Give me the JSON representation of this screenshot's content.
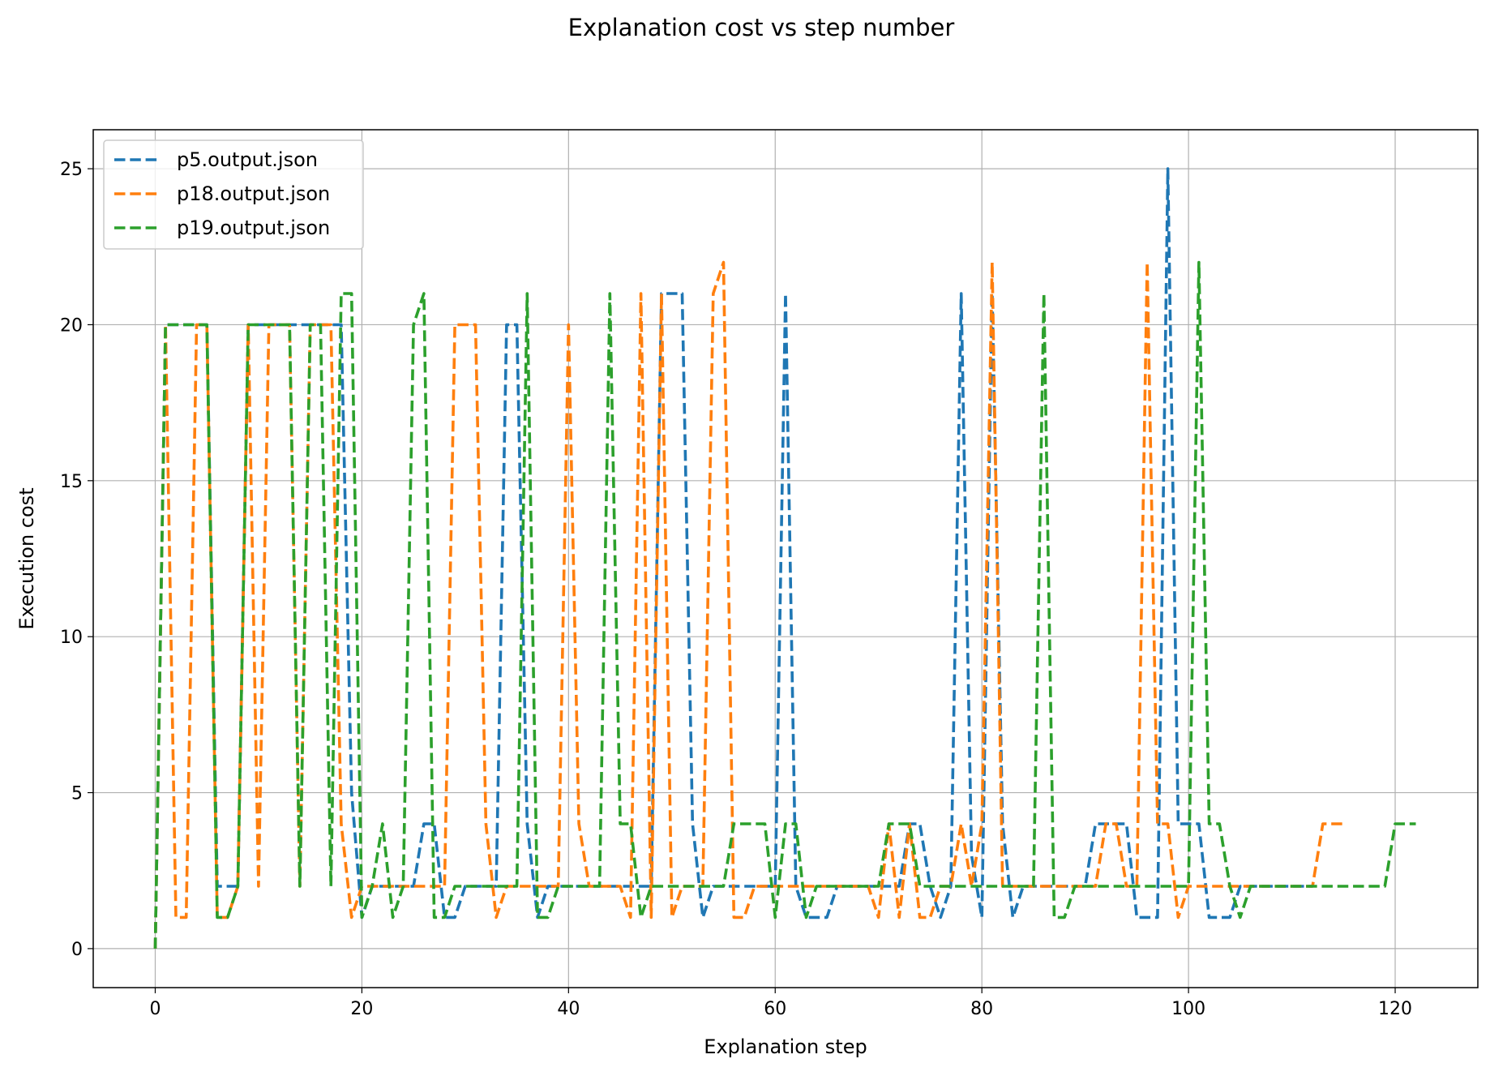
{
  "chart_data": {
    "type": "line",
    "title": "Explanation cost vs step number",
    "xlabel": "Explanation step",
    "ylabel": "Execution cost",
    "xlim": [
      -6,
      128
    ],
    "ylim": [
      -1.25,
      26.25
    ],
    "xticks": [
      0,
      20,
      40,
      60,
      80,
      100,
      120
    ],
    "yticks": [
      0,
      5,
      10,
      15,
      20,
      25
    ],
    "grid": true,
    "legend_position": "top-left",
    "line_style": "dashed",
    "series": [
      {
        "name": "p5.output.json",
        "color": "#1f77b4",
        "x": [
          0,
          1,
          2,
          3,
          4,
          5,
          6,
          7,
          8,
          9,
          10,
          11,
          12,
          13,
          14,
          15,
          16,
          17,
          18,
          19,
          20,
          21,
          22,
          23,
          24,
          25,
          26,
          27,
          28,
          29,
          30,
          31,
          32,
          33,
          34,
          35,
          36,
          37,
          38,
          39,
          40,
          41,
          42,
          43,
          44,
          45,
          46,
          47,
          48,
          49,
          50,
          51,
          52,
          53,
          54,
          55,
          56,
          57,
          58,
          59,
          60,
          61,
          62,
          63,
          64,
          65,
          66,
          67,
          68,
          69,
          70,
          71,
          72,
          73,
          74,
          75,
          76,
          77,
          78,
          79,
          80,
          81,
          82,
          83,
          84,
          85,
          86,
          87,
          88,
          89,
          90,
          91,
          92,
          93,
          94,
          95,
          96,
          97,
          98,
          99,
          100,
          101,
          102,
          103,
          104,
          105,
          106,
          107,
          108,
          109,
          110,
          111,
          112
        ],
        "y": [
          0,
          20,
          20,
          20,
          20,
          20,
          2,
          2,
          2,
          20,
          20,
          20,
          20,
          20,
          20,
          20,
          20,
          20,
          20,
          5,
          1,
          2,
          2,
          2,
          2,
          2,
          4,
          4,
          1,
          1,
          2,
          2,
          2,
          2,
          20,
          20,
          4,
          1,
          2,
          2,
          2,
          2,
          2,
          2,
          2,
          2,
          2,
          2,
          2,
          21,
          21,
          21,
          4,
          1,
          2,
          2,
          2,
          2,
          2,
          2,
          2,
          21,
          2,
          1,
          1,
          1,
          2,
          2,
          2,
          2,
          2,
          2,
          2,
          4,
          4,
          2,
          1,
          2,
          21,
          3,
          1,
          21,
          4,
          1,
          2,
          2,
          2,
          2,
          2,
          2,
          2,
          4,
          4,
          4,
          4,
          1,
          1,
          1,
          25,
          4,
          4,
          4,
          1,
          1,
          1,
          2,
          2,
          2,
          2,
          2,
          2,
          2,
          2
        ]
      },
      {
        "name": "p18.output.json",
        "color": "#ff7f0e",
        "x": [
          0,
          1,
          2,
          3,
          4,
          5,
          6,
          7,
          8,
          9,
          10,
          11,
          12,
          13,
          14,
          15,
          16,
          17,
          18,
          19,
          20,
          21,
          22,
          23,
          24,
          25,
          26,
          27,
          28,
          29,
          30,
          31,
          32,
          33,
          34,
          35,
          36,
          37,
          38,
          39,
          40,
          41,
          42,
          43,
          44,
          45,
          46,
          47,
          48,
          49,
          50,
          51,
          52,
          53,
          54,
          55,
          56,
          57,
          58,
          59,
          60,
          61,
          62,
          63,
          64,
          65,
          66,
          67,
          68,
          69,
          70,
          71,
          72,
          73,
          74,
          75,
          76,
          77,
          78,
          79,
          80,
          81,
          82,
          83,
          84,
          85,
          86,
          87,
          88,
          89,
          90,
          91,
          92,
          93,
          94,
          95,
          96,
          97,
          98,
          99,
          100,
          101,
          102,
          103,
          104,
          105,
          106,
          107,
          108,
          109,
          110,
          111,
          112,
          113,
          114,
          115
        ],
        "y": [
          0,
          20,
          1,
          1,
          20,
          20,
          1,
          1,
          2,
          20,
          2,
          20,
          20,
          20,
          2,
          20,
          20,
          20,
          4,
          1,
          2,
          2,
          2,
          2,
          2,
          2,
          2,
          2,
          2,
          20,
          20,
          20,
          4,
          1,
          2,
          2,
          2,
          2,
          2,
          2,
          20,
          4,
          2,
          2,
          2,
          2,
          1,
          21,
          1,
          21,
          1,
          2,
          2,
          2,
          21,
          22,
          1,
          1,
          2,
          2,
          2,
          2,
          2,
          2,
          2,
          2,
          2,
          2,
          2,
          2,
          1,
          4,
          1,
          4,
          1,
          1,
          2,
          2,
          4,
          2,
          4,
          22,
          2,
          2,
          2,
          2,
          2,
          2,
          2,
          2,
          2,
          2,
          4,
          4,
          2,
          2,
          22,
          4,
          4,
          1,
          2,
          2,
          2,
          2,
          2,
          2,
          2,
          2,
          2,
          2,
          2,
          2,
          2,
          4,
          4,
          4
        ]
      },
      {
        "name": "p19.output.json",
        "color": "#2ca02c",
        "x": [
          0,
          1,
          2,
          3,
          4,
          5,
          6,
          7,
          8,
          9,
          10,
          11,
          12,
          13,
          14,
          15,
          16,
          17,
          18,
          19,
          20,
          21,
          22,
          23,
          24,
          25,
          26,
          27,
          28,
          29,
          30,
          31,
          32,
          33,
          34,
          35,
          36,
          37,
          38,
          39,
          40,
          41,
          42,
          43,
          44,
          45,
          46,
          47,
          48,
          49,
          50,
          51,
          52,
          53,
          54,
          55,
          56,
          57,
          58,
          59,
          60,
          61,
          62,
          63,
          64,
          65,
          66,
          67,
          68,
          69,
          70,
          71,
          72,
          73,
          74,
          75,
          76,
          77,
          78,
          79,
          80,
          81,
          82,
          83,
          84,
          85,
          86,
          87,
          88,
          89,
          90,
          91,
          92,
          93,
          94,
          95,
          96,
          97,
          98,
          99,
          100,
          101,
          102,
          103,
          104,
          105,
          106,
          107,
          108,
          109,
          110,
          111,
          112,
          113,
          114,
          115,
          116,
          117,
          118,
          119,
          120,
          121,
          122
        ],
        "y": [
          0,
          20,
          20,
          20,
          20,
          20,
          1,
          1,
          2,
          20,
          20,
          20,
          20,
          20,
          2,
          20,
          20,
          2,
          21,
          21,
          1,
          2,
          4,
          1,
          2,
          20,
          21,
          1,
          1,
          2,
          2,
          2,
          2,
          2,
          2,
          2,
          21,
          1,
          1,
          2,
          2,
          2,
          2,
          2,
          21,
          4,
          4,
          1,
          2,
          2,
          2,
          2,
          2,
          2,
          2,
          2,
          4,
          4,
          4,
          4,
          1,
          4,
          4,
          1,
          2,
          2,
          2,
          2,
          2,
          2,
          2,
          4,
          4,
          4,
          2,
          2,
          2,
          2,
          2,
          2,
          2,
          2,
          2,
          2,
          2,
          2,
          21,
          1,
          1,
          2,
          2,
          2,
          2,
          2,
          2,
          2,
          2,
          2,
          2,
          2,
          2,
          22,
          4,
          4,
          2,
          1,
          2,
          2,
          2,
          2,
          2,
          2,
          2,
          2,
          2,
          2,
          2,
          2,
          2,
          2,
          4,
          4,
          4
        ]
      }
    ]
  }
}
